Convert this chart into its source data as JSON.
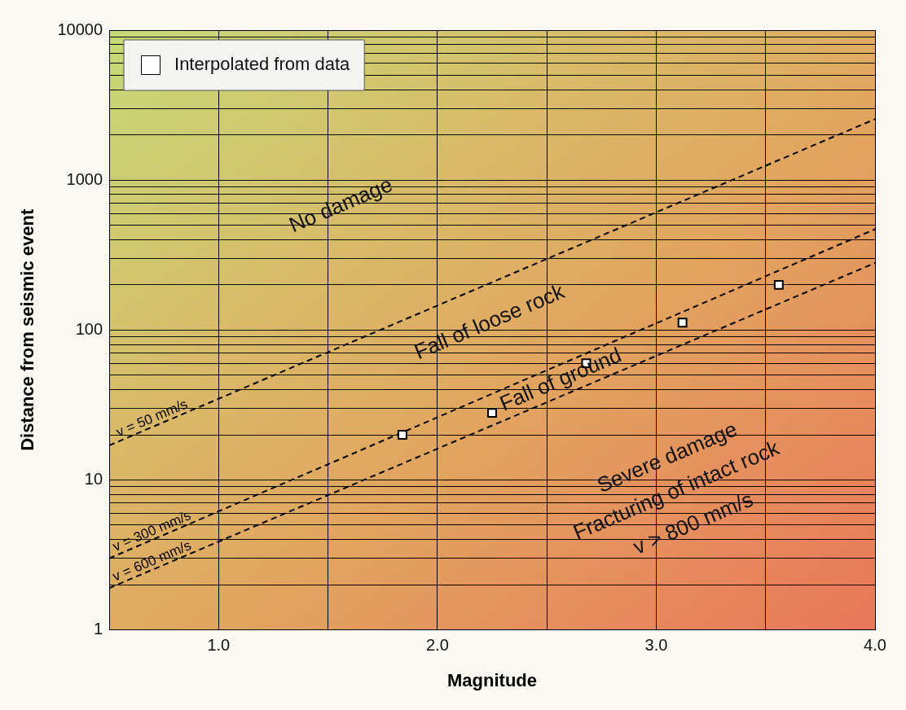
{
  "chart_data": {
    "type": "scatter",
    "xlabel": "Magnitude",
    "ylabel": "Distance from seismic event",
    "xlim": [
      0.5,
      4.0
    ],
    "xticks": [
      {
        "value": 1.0,
        "label": "1.0"
      },
      {
        "value": 1.5,
        "label": null
      },
      {
        "value": 2.0,
        "label": "2.0"
      },
      {
        "value": 2.5,
        "label": null
      },
      {
        "value": 3.0,
        "label": "3.0"
      },
      {
        "value": 3.5,
        "label": null
      },
      {
        "value": 4.0,
        "label": "4.0"
      }
    ],
    "ylim": [
      1,
      10000
    ],
    "log": true,
    "yticks": [
      1,
      {
        "value": 2,
        "label": null
      },
      {
        "value": 3,
        "label": null
      },
      {
        "value": 4,
        "label": null
      },
      {
        "value": 5,
        "label": null
      },
      {
        "value": 6,
        "label": null
      },
      {
        "value": 7,
        "label": null
      },
      {
        "value": 8,
        "label": null
      },
      {
        "value": 9,
        "label": null
      },
      10,
      {
        "value": 20,
        "label": null
      },
      {
        "value": 30,
        "label": null
      },
      {
        "value": 40,
        "label": null
      },
      {
        "value": 50,
        "label": null
      },
      {
        "value": 60,
        "label": null
      },
      {
        "value": 70,
        "label": null
      },
      {
        "value": 80,
        "label": null
      },
      {
        "value": 90,
        "label": null
      },
      100,
      {
        "value": 200,
        "label": null
      },
      {
        "value": 300,
        "label": null
      },
      {
        "value": 400,
        "label": null
      },
      {
        "value": 500,
        "label": null
      },
      {
        "value": 600,
        "label": null
      },
      {
        "value": 700,
        "label": null
      },
      {
        "value": 800,
        "label": null
      },
      {
        "value": 900,
        "label": null
      },
      1000,
      {
        "value": 2000,
        "label": null
      },
      {
        "value": 3000,
        "label": null
      },
      {
        "value": 4000,
        "label": null
      },
      {
        "value": 5000,
        "label": null
      },
      {
        "value": 6000,
        "label": null
      },
      {
        "value": 7000,
        "label": null
      },
      {
        "value": 8000,
        "label": null
      },
      {
        "value": 9000,
        "label": null
      },
      10000
    ],
    "grid": true,
    "legend": "top left",
    "series": [
      {
        "name": "Interpolated from data",
        "marker": "square",
        "color": "#ffffff",
        "x": [
          1.84,
          2.25,
          2.68,
          3.12,
          3.56
        ],
        "values": [
          20,
          28,
          60,
          112,
          200
        ]
      },
      {
        "name": "v = 50 mm/s",
        "type": "line",
        "marker": "none",
        "line_style": "dashed",
        "color": "#000000",
        "x": [
          0.5,
          4.0
        ],
        "values": [
          17,
          2550
        ]
      },
      {
        "name": "v = 300 mm/s",
        "type": "line",
        "marker": "none",
        "line_style": "dashed",
        "color": "#000000",
        "x": [
          0.5,
          4.0
        ],
        "values": [
          3.0,
          470
        ]
      },
      {
        "name": "v = 600 mm/s",
        "type": "line",
        "marker": "none",
        "line_style": "dashed",
        "color": "#000000",
        "x": [
          0.5,
          4.0
        ],
        "values": [
          1.9,
          280
        ]
      }
    ],
    "annotations": [
      "No damage",
      "Fall of loose rock",
      "Fall of ground",
      "Severe damage",
      "Fracturing of intact rock",
      "v > 800 mm/s"
    ]
  }
}
